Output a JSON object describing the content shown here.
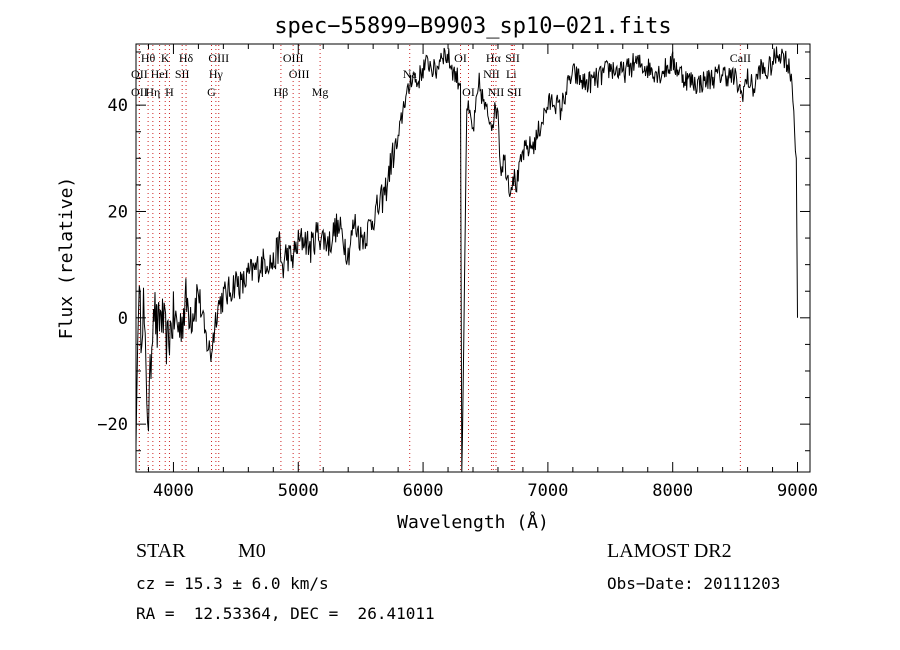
{
  "chart_data": {
    "type": "line",
    "title": "spec−55899−B9903_sp10−021.fits",
    "xlabel": "Wavelength (Å)",
    "ylabel": "Flux (relative)",
    "xlim": [
      3700,
      9100
    ],
    "ylim": [
      -29,
      51.5
    ],
    "x_ticks": [
      4000,
      5000,
      6000,
      7000,
      8000,
      9000
    ],
    "y_ticks": [
      -20,
      0,
      20,
      40
    ],
    "y_tick_labels": [
      "−20",
      "0",
      "20",
      "40"
    ],
    "grid": false,
    "series": [
      {
        "x": [
          3700,
          3720,
          3740,
          3760,
          3780,
          3800,
          3820,
          3840,
          3870,
          3900,
          3950,
          4000,
          4050,
          4100,
          4150,
          4200,
          4250,
          4300,
          4350,
          4400,
          4450,
          4500,
          4550,
          4600,
          4650,
          4700,
          4750,
          4800,
          4850,
          4860,
          4880,
          4900,
          4950,
          5000,
          5050,
          5100,
          5150,
          5200,
          5250,
          5300,
          5350,
          5400,
          5450,
          5500,
          5550,
          5600,
          5650,
          5700,
          5750,
          5800,
          5850,
          5880,
          5900,
          5920,
          5950,
          6000,
          6050,
          6100,
          6150,
          6200,
          6250,
          6280,
          6300,
          6310,
          6320,
          6350,
          6400,
          6450,
          6500,
          6550,
          6600,
          6620,
          6650,
          6700,
          6720,
          6750,
          6800,
          6850,
          6900,
          6950,
          7000,
          7050,
          7100,
          7150,
          7200,
          7300,
          7400,
          7500,
          7600,
          7700,
          7800,
          7900,
          8000,
          8100,
          8200,
          8300,
          8400,
          8500,
          8550,
          8600,
          8650,
          8700,
          8750,
          8800,
          8850,
          8900,
          8950,
          8970,
          8990,
          9000
        ],
        "y": [
          -24,
          5,
          -2,
          3,
          -12,
          -19,
          -8,
          4,
          -3,
          1,
          -5,
          0,
          -2,
          3,
          1,
          5,
          -3,
          -7,
          2,
          4,
          5,
          7,
          6,
          8,
          9,
          10,
          11,
          10,
          14,
          11,
          9,
          12,
          11,
          14,
          15,
          13,
          16,
          15,
          14,
          17,
          16,
          12,
          18,
          15,
          16,
          19,
          21,
          24,
          30,
          33,
          41,
          42,
          45,
          46,
          44,
          47,
          48,
          46,
          50,
          49,
          46,
          45,
          44,
          -29,
          -15,
          40,
          35,
          44,
          39,
          37,
          40,
          28,
          30,
          24,
          27,
          25,
          31,
          32,
          33,
          37,
          40,
          41,
          39,
          43,
          46,
          44,
          45,
          47,
          46,
          48,
          47,
          46,
          48,
          45,
          44,
          45,
          46,
          45,
          42,
          45,
          43,
          47,
          46,
          48,
          50,
          49,
          46,
          39,
          30,
          0
        ]
      }
    ],
    "line_markers": [
      {
        "label": "Hθ",
        "x": 3797,
        "row": 1
      },
      {
        "label": "K",
        "x": 3934,
        "row": 1
      },
      {
        "label": "Hδ",
        "x": 4101,
        "row": 1
      },
      {
        "label": "OIII",
        "x": 4363,
        "row": 1
      },
      {
        "label": "OIII",
        "x": 4959,
        "row": 1
      },
      {
        "label": "OI",
        "x": 6300,
        "row": 1
      },
      {
        "label": "Hα",
        "x": 6563,
        "row": 1
      },
      {
        "label": "SII",
        "x": 6717,
        "row": 1
      },
      {
        "label": "CaII",
        "x": 8542,
        "row": 1
      },
      {
        "label": "OII",
        "x": 3727,
        "row": 2
      },
      {
        "label": "HeI",
        "x": 3889,
        "row": 2
      },
      {
        "label": "SII",
        "x": 4070,
        "row": 2
      },
      {
        "label": "Hγ",
        "x": 4340,
        "row": 2
      },
      {
        "label": "OIII",
        "x": 5007,
        "row": 2
      },
      {
        "label": "Na",
        "x": 5893,
        "row": 2
      },
      {
        "label": "NII",
        "x": 6548,
        "row": 2
      },
      {
        "label": "Li",
        "x": 6707,
        "row": 2
      },
      {
        "label": "OII",
        "x": 3727,
        "row": 3
      },
      {
        "label": "Hη",
        "x": 3835,
        "row": 3
      },
      {
        "label": "H",
        "x": 3968,
        "row": 3
      },
      {
        "label": "G",
        "x": 4305,
        "row": 3
      },
      {
        "label": "Hβ",
        "x": 4861,
        "row": 3
      },
      {
        "label": "Mg",
        "x": 5175,
        "row": 3
      },
      {
        "label": "OI",
        "x": 6364,
        "row": 3
      },
      {
        "label": "NII",
        "x": 6584,
        "row": 3
      },
      {
        "label": "SII",
        "x": 6731,
        "row": 3
      }
    ]
  },
  "info": {
    "class": "STAR",
    "subclass": "M0",
    "survey": "LAMOST DR2",
    "cz": "cz = 15.3 ± 6.0 km/s",
    "obs_date": "Obs−Date: 20111203",
    "coords": "RA =  12.53364, DEC =  26.41011"
  }
}
